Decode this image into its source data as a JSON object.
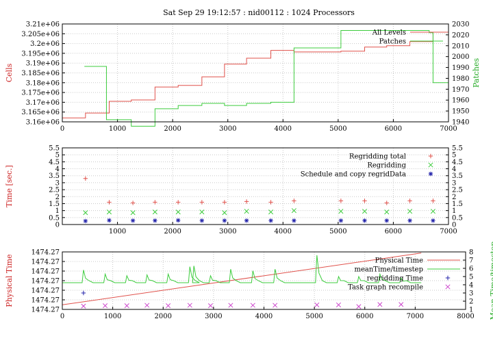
{
  "figure_title": "Sat Sep 29 19:12:57 : nid00112 : 1024 Processors",
  "chart_data": [
    {
      "type": "line",
      "xlim": [
        0,
        7000
      ],
      "x_ticks": [
        0,
        1000,
        2000,
        3000,
        4000,
        5000,
        6000,
        7000
      ],
      "x_tick_labels": [
        "0",
        "1000",
        "2000",
        "3000",
        "4000",
        "5000",
        "6000",
        "7000"
      ],
      "ylabel": "Cells",
      "ylim": [
        3160000,
        3210000
      ],
      "y_ticks": [
        3160000,
        3165000,
        3170000,
        3175000,
        3180000,
        3185000,
        3190000,
        3195000,
        3200000,
        3205000,
        3210000
      ],
      "y_tick_labels": [
        "3.16e+06",
        "3.165e+06",
        "3.17e+06",
        "3.175e+06",
        "3.18e+06",
        "3.185e+06",
        "3.19e+06",
        "3.195e+06",
        "3.2e+06",
        "3.205e+06",
        "3.21e+06"
      ],
      "y2label": "Patches",
      "y2lim": [
        1940,
        2030
      ],
      "y2_ticks": [
        1940,
        1950,
        1960,
        1970,
        1980,
        1990,
        2000,
        2010,
        2020,
        2030
      ],
      "y2_tick_labels": [
        "1940",
        "1950",
        "1960",
        "1970",
        "1980",
        "1990",
        "2000",
        "2010",
        "2020",
        "2030"
      ],
      "grid": true,
      "legend_position": "top-right",
      "series": [
        {
          "name": "All Levels",
          "axis": "left",
          "color": "#e0504a",
          "step": true,
          "x": [
            0,
            420,
            850,
            1250,
            1680,
            2100,
            2530,
            2940,
            3340,
            3780,
            4200,
            5050,
            5480,
            5880,
            6300,
            6720
          ],
          "y": [
            3162000,
            3164500,
            3170500,
            3171200,
            3177800,
            3178600,
            3183000,
            3189500,
            3192500,
            3196500,
            3195700,
            3196100,
            3198200,
            3198900,
            3201000,
            3205800
          ]
        },
        {
          "name": "Patches",
          "axis": "right",
          "color": "#3ccc3c",
          "step": true,
          "x": [
            400,
            800,
            1250,
            1680,
            2100,
            2530,
            2940,
            3340,
            3780,
            4200,
            5050,
            6650,
            6720
          ],
          "y": [
            1991,
            1942,
            1936,
            1952,
            1955,
            1957,
            1955,
            1957,
            1958,
            2008,
            2024,
            2022,
            1976
          ]
        }
      ]
    },
    {
      "type": "scatter",
      "xlim": [
        0,
        7000
      ],
      "x_ticks": [
        0,
        1000,
        2000,
        3000,
        4000,
        5000,
        6000,
        7000
      ],
      "x_tick_labels": [
        "",
        "1000",
        "2000",
        "3000",
        "4000",
        "5000",
        "6000",
        "7000"
      ],
      "ylabel": "Time [sec.]",
      "ylim": [
        0,
        5.5
      ],
      "y_ticks": [
        0,
        0.5,
        1,
        1.5,
        2,
        2.5,
        3,
        3.5,
        4,
        4.5,
        5,
        5.5
      ],
      "y_tick_labels": [
        "0",
        "0.5",
        "1",
        "1.5",
        "2",
        "2.5",
        "3",
        "3.5",
        "4",
        "4.5",
        "5",
        "5.5"
      ],
      "y2_tick_labels": [
        "0",
        "0.5",
        "1",
        "1.5",
        "2",
        "2.5",
        "3",
        "3.5",
        "4",
        "4.5",
        "5",
        "5.5"
      ],
      "grid": true,
      "legend_position": "top-right",
      "series": [
        {
          "name": "Regridding total",
          "color": "#e0504a",
          "marker": "plus",
          "x": [
            420,
            850,
            1280,
            1680,
            2100,
            2530,
            2940,
            3340,
            3780,
            4200,
            5050,
            5480,
            5880,
            6300,
            6720
          ],
          "y": [
            3.3,
            1.6,
            1.55,
            1.6,
            1.6,
            1.6,
            1.6,
            1.65,
            1.6,
            1.7,
            1.7,
            1.7,
            1.55,
            1.7,
            1.7
          ]
        },
        {
          "name": "Regridding",
          "color": "#3ccc3c",
          "marker": "x",
          "x": [
            420,
            850,
            1280,
            1680,
            2100,
            2530,
            2940,
            3340,
            3780,
            4200,
            5050,
            5480,
            5880,
            6300,
            6720
          ],
          "y": [
            0.85,
            0.9,
            0.85,
            0.9,
            0.9,
            0.9,
            0.85,
            0.95,
            0.9,
            1.0,
            0.95,
            0.95,
            0.9,
            0.95,
            0.95
          ]
        },
        {
          "name": "Schedule and copy regridData",
          "color": "#2222aa",
          "marker": "star",
          "x": [
            420,
            850,
            1280,
            1680,
            2100,
            2530,
            2940,
            3340,
            3780,
            4200,
            5050,
            5480,
            5880,
            6300,
            6720
          ],
          "y": [
            0.25,
            0.3,
            0.28,
            0.28,
            0.3,
            0.28,
            0.28,
            0.28,
            0.28,
            0.28,
            0.28,
            0.28,
            0.28,
            0.28,
            0.28
          ]
        }
      ]
    },
    {
      "type": "line",
      "xlim": [
        0,
        8000
      ],
      "x_ticks": [
        0,
        1000,
        2000,
        3000,
        4000,
        5000,
        6000,
        7000,
        8000
      ],
      "x_tick_labels": [
        "0",
        "1000",
        "2000",
        "3000",
        "4000",
        "5000",
        "6000",
        "7000",
        "8000"
      ],
      "ylabel": "Physical Time",
      "y_tick_labels": [
        "1474.27",
        "1474.27",
        "1474.27",
        "1474.27",
        "1474.27",
        "1474.27",
        "1474.27"
      ],
      "y2label": "Mean Time/timestep",
      "y2lim": [
        1,
        8
      ],
      "y2_ticks": [
        1,
        2,
        3,
        4,
        5,
        6,
        7,
        8
      ],
      "y2_tick_labels": [
        "1",
        "2",
        "3",
        "4",
        "5",
        "6",
        "7",
        "8"
      ],
      "grid": true,
      "legend_position": "top-right",
      "series": [
        {
          "name": "Physical Time",
          "axis": "left",
          "color": "#e0504a",
          "line": true,
          "x": [
            0,
            7120
          ],
          "y": [
            0.08,
            0.98
          ]
        },
        {
          "name": "meanTime/timestep",
          "axis": "right",
          "color": "#3ccc3c",
          "line": true,
          "base_x": [
            0,
            7120
          ],
          "base_y": 4.25,
          "spikes_x": [
            420,
            850,
            1280,
            1680,
            2100,
            2530,
            2610,
            2940,
            3340,
            3780,
            4220,
            5050,
            5480,
            5880,
            6300,
            6720
          ],
          "spikes_y": [
            5.8,
            5.3,
            5.1,
            5.2,
            5.3,
            6.2,
            6.3,
            5.1,
            5.9,
            5.7,
            5.9,
            7.6,
            5.0,
            5.0,
            5.3,
            4.8
          ]
        },
        {
          "name": "regridding Time",
          "axis": "right",
          "color": "#2222aa",
          "marker": "plus",
          "x": [
            420
          ],
          "y": [
            3.0
          ]
        },
        {
          "name": "Task graph recompile",
          "axis": "right",
          "color": "#cc44cc",
          "marker": "x",
          "x": [
            420,
            850,
            1280,
            1680,
            2100,
            2530,
            2940,
            3340,
            3780,
            4220,
            5050,
            5480,
            5880,
            6300,
            6720
          ],
          "y": [
            1.4,
            1.45,
            1.45,
            1.5,
            1.45,
            1.5,
            1.45,
            1.5,
            1.5,
            1.5,
            1.55,
            1.55,
            1.35,
            1.6,
            1.6
          ]
        }
      ]
    }
  ]
}
